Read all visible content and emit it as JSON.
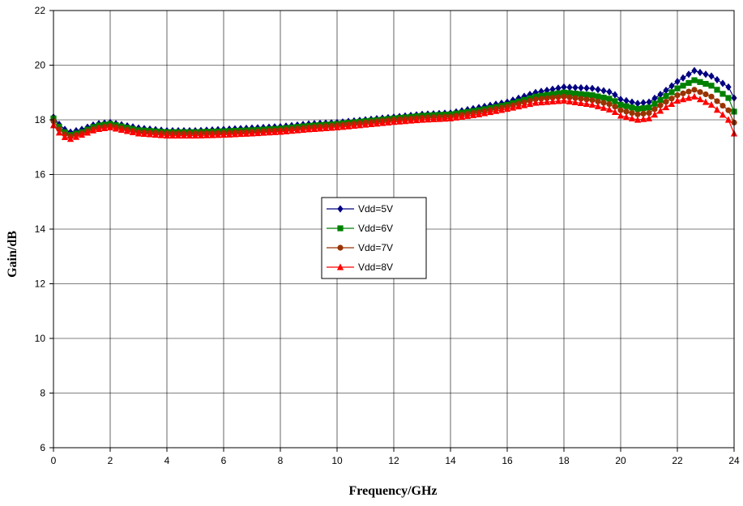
{
  "chart_data": {
    "type": "line",
    "title": "",
    "xlabel": "Frequency/GHz",
    "ylabel": "Gain/dB",
    "xlim": [
      0,
      24
    ],
    "ylim": [
      6,
      22
    ],
    "xticks": [
      0,
      2,
      4,
      6,
      8,
      10,
      12,
      14,
      16,
      18,
      20,
      22,
      24
    ],
    "yticks": [
      6,
      8,
      10,
      12,
      14,
      16,
      18,
      20,
      22
    ],
    "grid": true,
    "legend_placement": "center",
    "sample_step_ghz": 0.2,
    "series": [
      {
        "name": "Vdd=5V",
        "color": "#000080",
        "marker": "diamond",
        "anchors": [
          [
            0,
            18.1
          ],
          [
            0.3,
            17.7
          ],
          [
            0.6,
            17.55
          ],
          [
            1,
            17.65
          ],
          [
            1.5,
            17.85
          ],
          [
            2,
            17.9
          ],
          [
            3,
            17.7
          ],
          [
            4,
            17.6
          ],
          [
            5,
            17.6
          ],
          [
            6,
            17.65
          ],
          [
            7,
            17.7
          ],
          [
            8,
            17.75
          ],
          [
            9,
            17.85
          ],
          [
            10,
            17.9
          ],
          [
            11,
            18.0
          ],
          [
            12,
            18.1
          ],
          [
            13,
            18.2
          ],
          [
            14,
            18.25
          ],
          [
            15,
            18.45
          ],
          [
            16,
            18.65
          ],
          [
            17,
            19.0
          ],
          [
            18,
            19.2
          ],
          [
            19,
            19.15
          ],
          [
            19.7,
            19.0
          ],
          [
            20,
            18.75
          ],
          [
            20.6,
            18.6
          ],
          [
            21,
            18.65
          ],
          [
            21.5,
            19.0
          ],
          [
            22,
            19.4
          ],
          [
            22.6,
            19.8
          ],
          [
            23.2,
            19.6
          ],
          [
            23.8,
            19.2
          ],
          [
            24,
            18.8
          ]
        ]
      },
      {
        "name": "Vdd=6V",
        "color": "#008000",
        "marker": "square",
        "anchors": [
          [
            0,
            18.05
          ],
          [
            0.3,
            17.6
          ],
          [
            0.6,
            17.45
          ],
          [
            1,
            17.55
          ],
          [
            1.5,
            17.78
          ],
          [
            2,
            17.85
          ],
          [
            3,
            17.62
          ],
          [
            4,
            17.55
          ],
          [
            5,
            17.55
          ],
          [
            6,
            17.58
          ],
          [
            7,
            17.62
          ],
          [
            8,
            17.68
          ],
          [
            9,
            17.78
          ],
          [
            10,
            17.85
          ],
          [
            11,
            17.95
          ],
          [
            12,
            18.05
          ],
          [
            13,
            18.15
          ],
          [
            14,
            18.2
          ],
          [
            15,
            18.35
          ],
          [
            16,
            18.55
          ],
          [
            17,
            18.85
          ],
          [
            18,
            19.0
          ],
          [
            19,
            18.9
          ],
          [
            19.7,
            18.75
          ],
          [
            20,
            18.55
          ],
          [
            20.6,
            18.4
          ],
          [
            21,
            18.45
          ],
          [
            21.5,
            18.8
          ],
          [
            22,
            19.15
          ],
          [
            22.6,
            19.45
          ],
          [
            23.2,
            19.25
          ],
          [
            23.8,
            18.8
          ],
          [
            24,
            18.3
          ]
        ]
      },
      {
        "name": "Vdd=7V",
        "color": "#993300",
        "marker": "circle",
        "anchors": [
          [
            0,
            17.95
          ],
          [
            0.3,
            17.5
          ],
          [
            0.6,
            17.4
          ],
          [
            1,
            17.5
          ],
          [
            1.5,
            17.7
          ],
          [
            2,
            17.78
          ],
          [
            3,
            17.55
          ],
          [
            4,
            17.5
          ],
          [
            5,
            17.5
          ],
          [
            6,
            17.52
          ],
          [
            7,
            17.56
          ],
          [
            8,
            17.62
          ],
          [
            9,
            17.72
          ],
          [
            10,
            17.8
          ],
          [
            11,
            17.9
          ],
          [
            12,
            18.0
          ],
          [
            13,
            18.08
          ],
          [
            14,
            18.12
          ],
          [
            15,
            18.28
          ],
          [
            16,
            18.48
          ],
          [
            17,
            18.75
          ],
          [
            18,
            18.85
          ],
          [
            19,
            18.72
          ],
          [
            19.7,
            18.55
          ],
          [
            20,
            18.35
          ],
          [
            20.6,
            18.2
          ],
          [
            21,
            18.25
          ],
          [
            21.5,
            18.6
          ],
          [
            22,
            18.9
          ],
          [
            22.6,
            19.1
          ],
          [
            23.2,
            18.85
          ],
          [
            23.8,
            18.35
          ],
          [
            24,
            17.9
          ]
        ]
      },
      {
        "name": "Vdd=8V",
        "color": "#ff0000",
        "marker": "triangle",
        "anchors": [
          [
            0,
            17.8
          ],
          [
            0.3,
            17.4
          ],
          [
            0.6,
            17.3
          ],
          [
            1,
            17.45
          ],
          [
            1.5,
            17.65
          ],
          [
            2,
            17.72
          ],
          [
            3,
            17.5
          ],
          [
            4,
            17.42
          ],
          [
            5,
            17.42
          ],
          [
            6,
            17.45
          ],
          [
            7,
            17.5
          ],
          [
            8,
            17.56
          ],
          [
            9,
            17.65
          ],
          [
            10,
            17.72
          ],
          [
            11,
            17.82
          ],
          [
            12,
            17.92
          ],
          [
            13,
            18.0
          ],
          [
            14,
            18.05
          ],
          [
            15,
            18.2
          ],
          [
            16,
            18.4
          ],
          [
            17,
            18.62
          ],
          [
            18,
            18.7
          ],
          [
            19,
            18.55
          ],
          [
            19.7,
            18.35
          ],
          [
            20,
            18.15
          ],
          [
            20.6,
            18.0
          ],
          [
            21,
            18.05
          ],
          [
            21.5,
            18.4
          ],
          [
            22,
            18.7
          ],
          [
            22.6,
            18.85
          ],
          [
            23.2,
            18.55
          ],
          [
            23.8,
            18.0
          ],
          [
            24,
            17.5
          ]
        ]
      }
    ]
  }
}
